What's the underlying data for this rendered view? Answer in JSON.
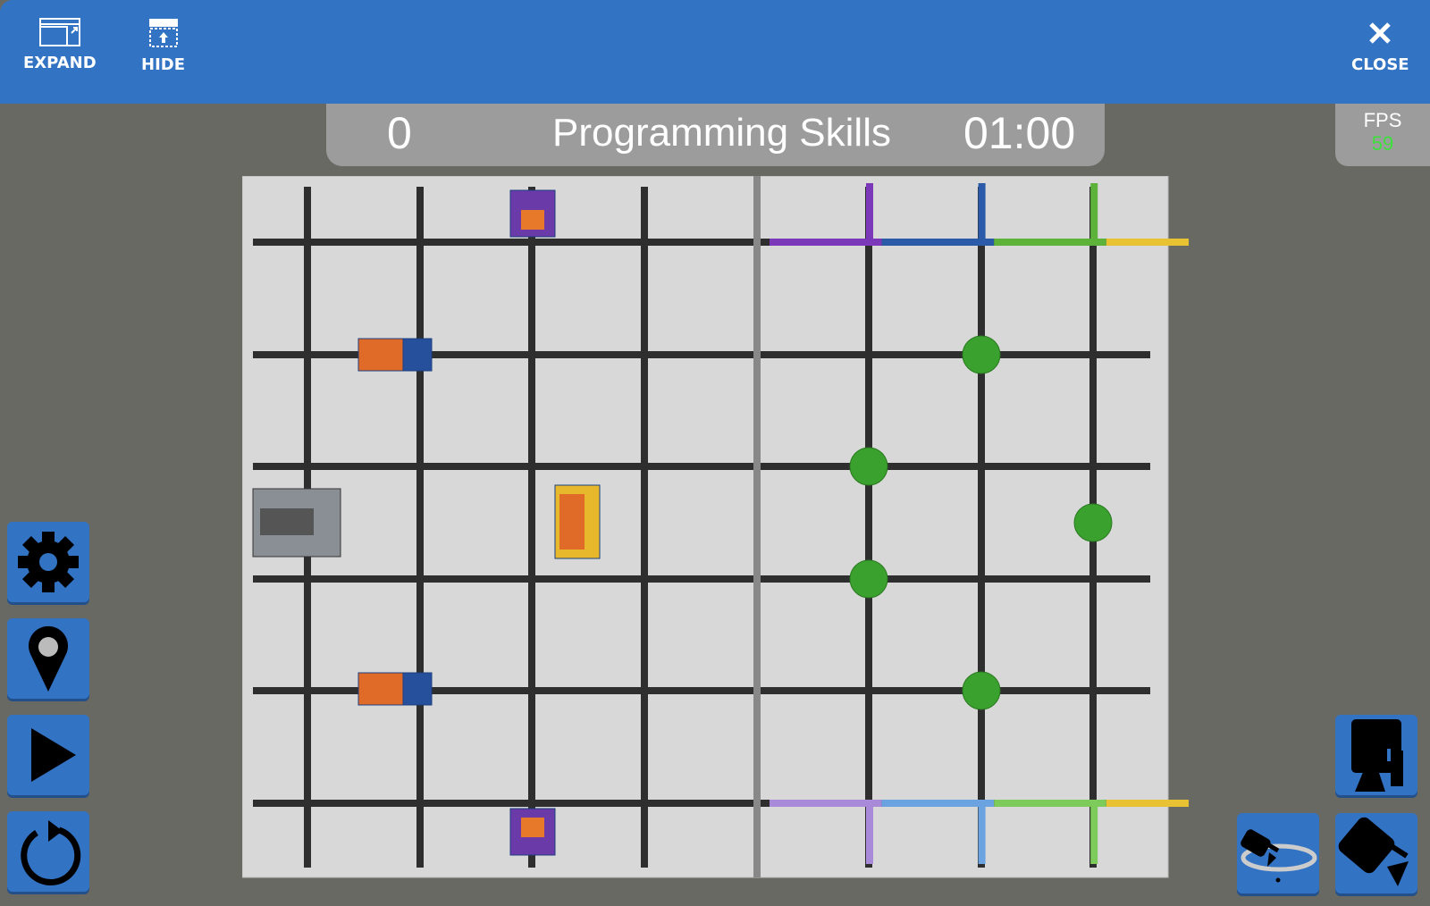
{
  "topbar": {
    "expand_label": "EXPAND",
    "hide_label": "HIDE",
    "close_label": "CLOSE"
  },
  "scoreboard": {
    "score": "0",
    "mode": "Programming Skills",
    "timer": "01:00"
  },
  "fps": {
    "label": "FPS",
    "value": "59",
    "value_color": "#3de03d"
  },
  "sidebar": {
    "buttons": [
      "settings-icon",
      "location-pin-icon",
      "play-icon",
      "reset-icon"
    ]
  },
  "camera_buttons": [
    "top-down-camera-icon",
    "orbit-camera-icon",
    "follow-camera-icon"
  ],
  "colors": {
    "accent": "#3373c4",
    "background": "#686963",
    "field": "#d6d6d6",
    "ball": "#3aa02e"
  }
}
